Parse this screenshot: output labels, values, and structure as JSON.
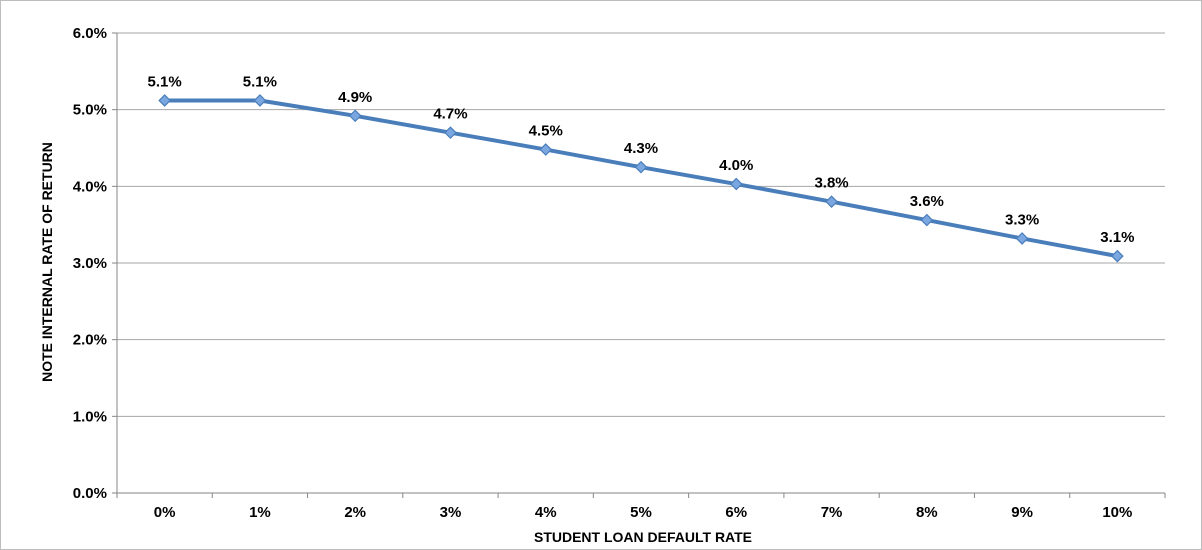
{
  "chart_data": {
    "type": "line",
    "title": "",
    "xlabel": "STUDENT LOAN DEFAULT RATE",
    "ylabel": "NOTE INTERNAL RATE OF RETURN",
    "categories": [
      "0%",
      "1%",
      "2%",
      "3%",
      "4%",
      "5%",
      "6%",
      "7%",
      "8%",
      "9%",
      "10%"
    ],
    "series": [
      {
        "values": [
          5.12,
          5.12,
          4.92,
          4.7,
          4.48,
          4.25,
          4.03,
          3.8,
          3.56,
          3.32,
          3.09
        ],
        "data_labels": [
          "5.1%",
          "5.1%",
          "4.9%",
          "4.7%",
          "4.5%",
          "4.3%",
          "4.0%",
          "3.8%",
          "3.6%",
          "3.3%",
          "3.1%"
        ],
        "color": "#4a7ebb",
        "marker_color": "#7ba7e0"
      }
    ],
    "y_ticks": [
      "0.0%",
      "1.0%",
      "2.0%",
      "3.0%",
      "4.0%",
      "5.0%",
      "6.0%"
    ],
    "ylim": [
      0,
      6
    ],
    "grid": true,
    "legend": "none"
  }
}
